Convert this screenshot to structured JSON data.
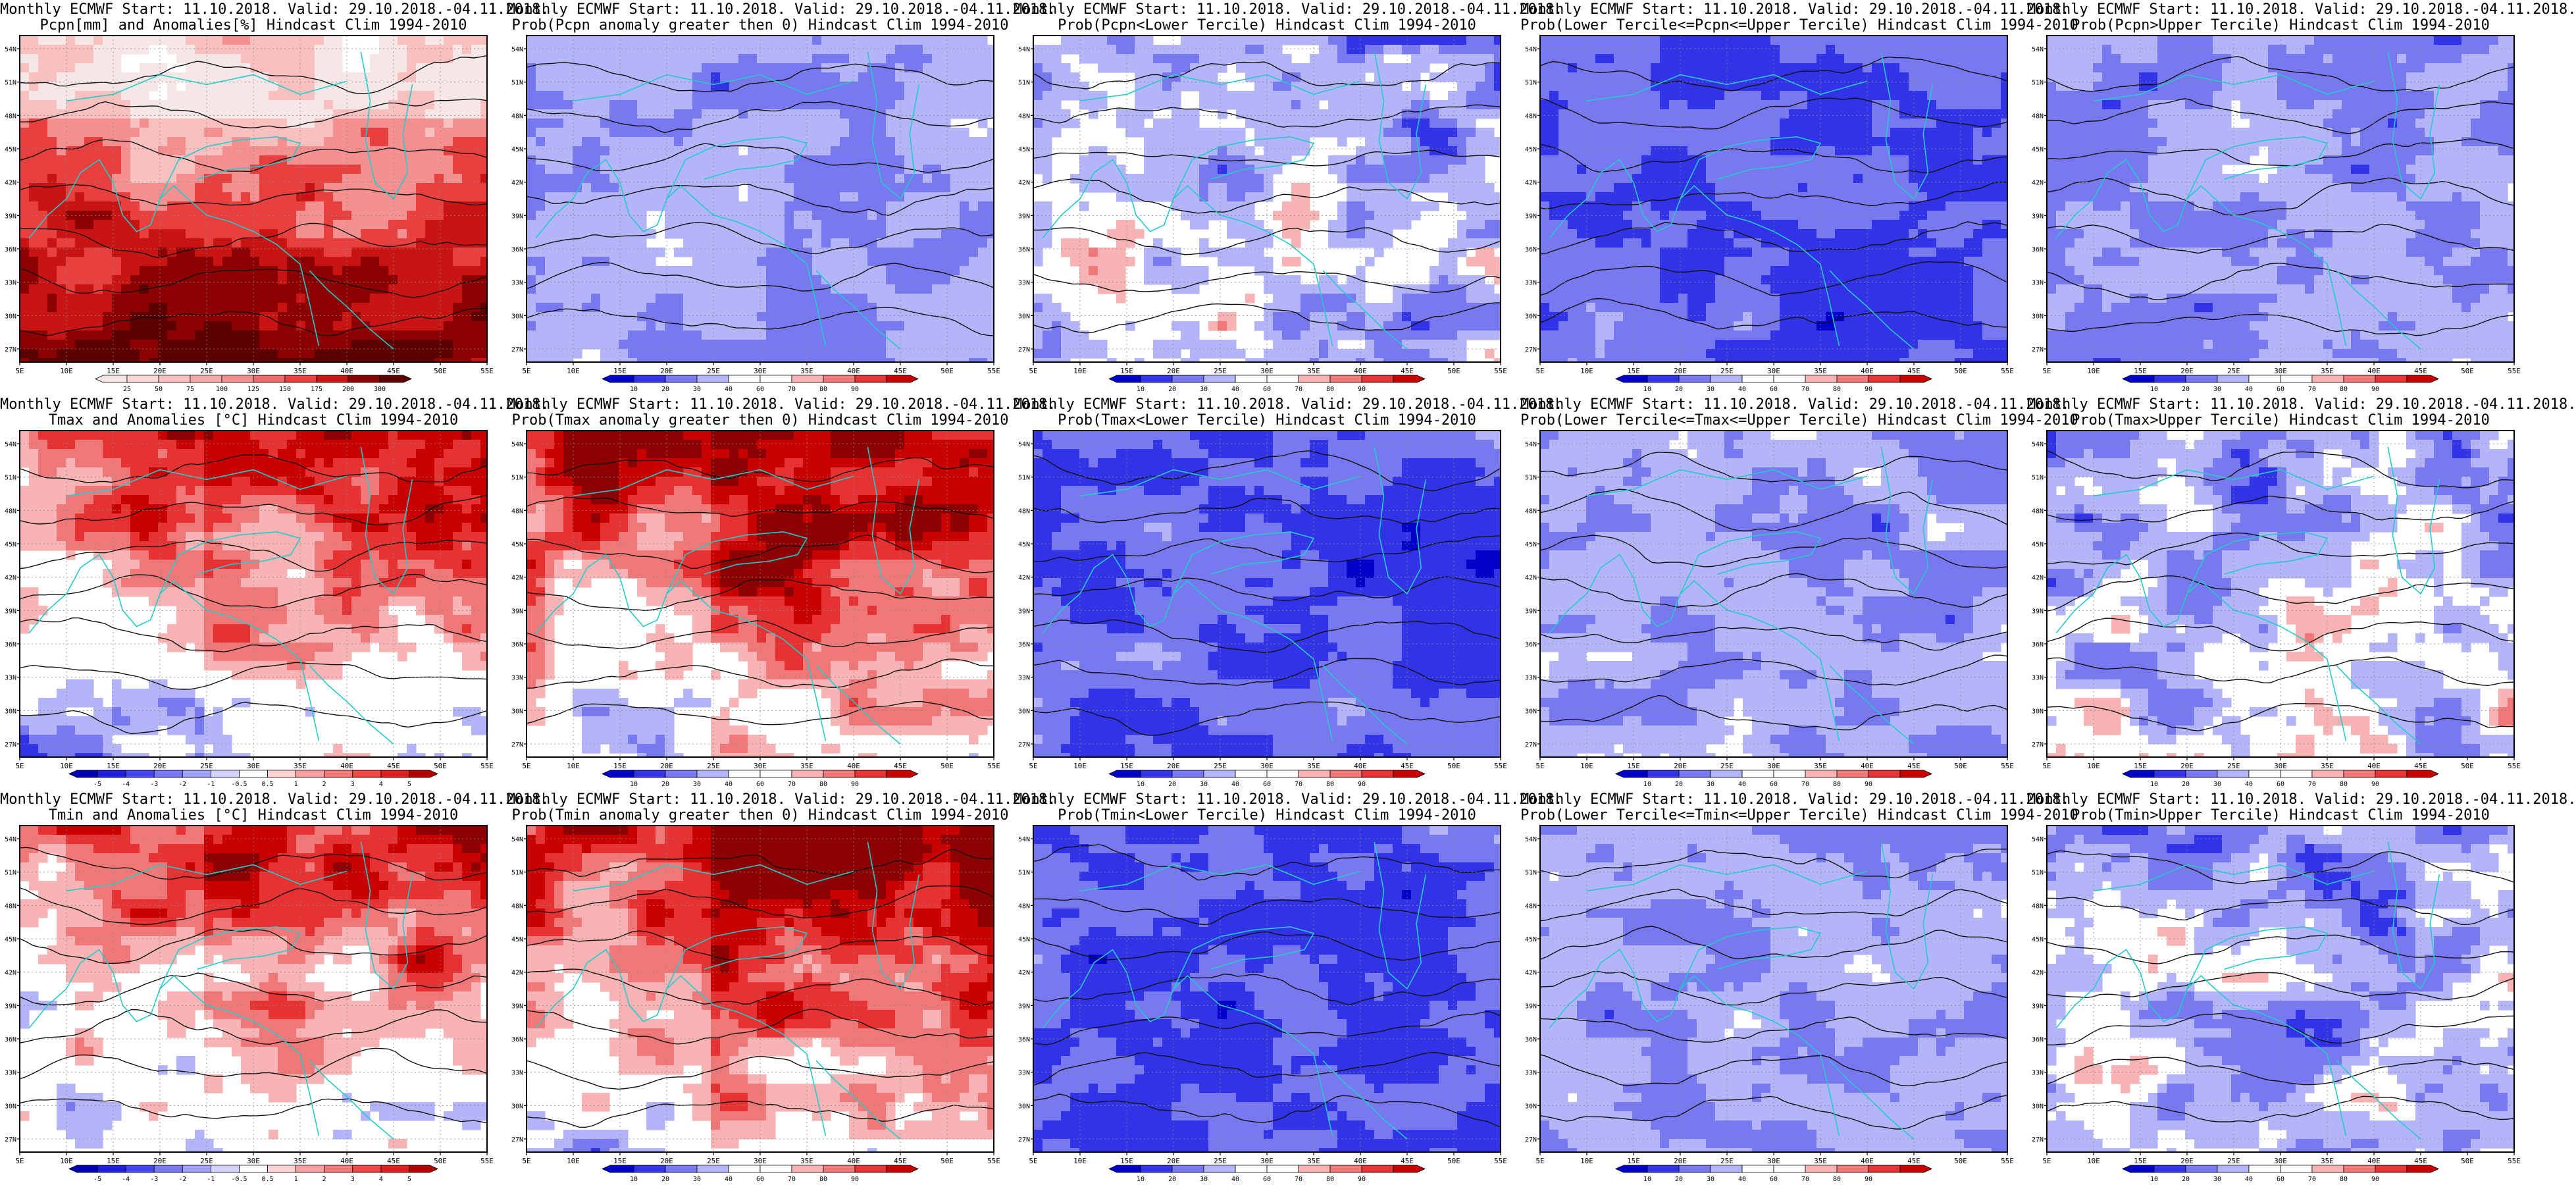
{
  "figure": {
    "title_line1": "Monthly ECMWF Start: 11.10.2018. Valid: 29.10.2018.-04.11.2018.",
    "lon_labels": [
      "5E",
      "10E",
      "15E",
      "20E",
      "25E",
      "30E",
      "35E",
      "40E",
      "45E",
      "50E",
      "55E"
    ],
    "lat_labels": [
      "54N",
      "51N",
      "48N",
      "45N",
      "42N",
      "39N",
      "36N",
      "33N",
      "30N",
      "27N"
    ],
    "colors": {
      "coast": "#22cccc",
      "contour": "#111111",
      "frame": "#000000"
    }
  },
  "rows": [
    {
      "variable": "pcpn",
      "panels": [
        {
          "title2": "Pcpn[mm] and Anomalies[%] Hindcast Clim 1994-2010",
          "scheme": "anom_pcpn",
          "cbar": {
            "labels": [
              "25",
              "50",
              "75",
              "100",
              "125",
              "150",
              "175",
              "200",
              "300"
            ],
            "colors": [
              "#f6e7e7",
              "#fbd7d7",
              "#f9c0c0",
              "#f6a8a8",
              "#f49090",
              "#ef6a6a",
              "#e83f3f",
              "#c91414",
              "#8b0000",
              "#5c0000"
            ]
          }
        },
        {
          "title2": "Prob(Pcpn anomaly greater then 0) Hindcast Clim 1994-2010",
          "scheme": "prob_blue",
          "cbar": {
            "labels": [
              "10",
              "20",
              "30",
              "40",
              "60",
              "70",
              "80",
              "90"
            ],
            "colors": [
              "#0000c8",
              "#3232e6",
              "#7878f0",
              "#b4b4f8",
              "#ffffff",
              "#ffffff",
              "#f8b4b4",
              "#f07878",
              "#e63232",
              "#c80000"
            ]
          }
        },
        {
          "title2": "Prob(Pcpn<Lower Tercile) Hindcast Clim 1994-2010",
          "scheme": "prob_mixed",
          "cbar": {
            "labels": [
              "10",
              "20",
              "30",
              "40",
              "60",
              "70",
              "80",
              "90"
            ],
            "colors": [
              "#0000c8",
              "#3232e6",
              "#7878f0",
              "#b4b4f8",
              "#ffffff",
              "#ffffff",
              "#f8b4b4",
              "#f07878",
              "#e63232",
              "#c80000"
            ]
          }
        },
        {
          "title2": "Prob(Lower Tercile<=Pcpn<=Upper Tercile) Hindcast Clim 1994-2010",
          "scheme": "prob_deepblue",
          "cbar": {
            "labels": [
              "10",
              "20",
              "30",
              "40",
              "60",
              "70",
              "80",
              "90"
            ],
            "colors": [
              "#0000c8",
              "#3232e6",
              "#7878f0",
              "#b4b4f8",
              "#ffffff",
              "#ffffff",
              "#f8b4b4",
              "#f07878",
              "#e63232",
              "#c80000"
            ]
          }
        },
        {
          "title2": "Prob(Pcpn>Upper Tercile) Hindcast Clim 1994-2010",
          "scheme": "prob_blue",
          "cbar": {
            "labels": [
              "10",
              "20",
              "30",
              "40",
              "60",
              "70",
              "80",
              "90"
            ],
            "colors": [
              "#0000c8",
              "#3232e6",
              "#7878f0",
              "#b4b4f8",
              "#ffffff",
              "#ffffff",
              "#f8b4b4",
              "#f07878",
              "#e63232",
              "#c80000"
            ]
          }
        }
      ]
    },
    {
      "variable": "tmax",
      "panels": [
        {
          "title2": "Tmax and Anomalies [°C] Hindcast Clim 1994-2010",
          "scheme": "anom_temp",
          "cbar": {
            "labels": [
              "-5",
              "-4",
              "-3",
              "-2",
              "-1",
              "-0.5",
              "0.5",
              "1",
              "2",
              "3",
              "4",
              "5"
            ],
            "colors": [
              "#0000b4",
              "#1e1edc",
              "#4646f0",
              "#7878f5",
              "#a0a0fa",
              "#d2d2fc",
              "#ffffff",
              "#fcd2d2",
              "#faa0a0",
              "#f57878",
              "#f04646",
              "#dc1e1e",
              "#b40000"
            ]
          }
        },
        {
          "title2": "Prob(Tmax anomaly greater then 0) Hindcast Clim 1994-2010",
          "scheme": "prob_red",
          "cbar": {
            "labels": [
              "10",
              "20",
              "30",
              "40",
              "60",
              "70",
              "80",
              "90"
            ],
            "colors": [
              "#0000c8",
              "#3232e6",
              "#7878f0",
              "#b4b4f8",
              "#ffffff",
              "#ffffff",
              "#f8b4b4",
              "#f07878",
              "#e63232",
              "#c80000"
            ]
          }
        },
        {
          "title2": "Prob(Tmax<Lower Tercile) Hindcast Clim 1994-2010",
          "scheme": "prob_deepblue",
          "cbar": {
            "labels": [
              "10",
              "20",
              "30",
              "40",
              "60",
              "70",
              "80",
              "90"
            ],
            "colors": [
              "#0000c8",
              "#3232e6",
              "#7878f0",
              "#b4b4f8",
              "#ffffff",
              "#ffffff",
              "#f8b4b4",
              "#f07878",
              "#e63232",
              "#c80000"
            ]
          }
        },
        {
          "title2": "Prob(Lower Tercile<=Tmax<=Upper Tercile) Hindcast Clim 1994-2010",
          "scheme": "prob_blue",
          "cbar": {
            "labels": [
              "10",
              "20",
              "30",
              "40",
              "60",
              "70",
              "80",
              "90"
            ],
            "colors": [
              "#0000c8",
              "#3232e6",
              "#7878f0",
              "#b4b4f8",
              "#ffffff",
              "#ffffff",
              "#f8b4b4",
              "#f07878",
              "#e63232",
              "#c80000"
            ]
          }
        },
        {
          "title2": "Prob(Tmax>Upper Tercile) Hindcast Clim 1994-2010",
          "scheme": "prob_mixed",
          "cbar": {
            "labels": [
              "10",
              "20",
              "30",
              "40",
              "60",
              "70",
              "80",
              "90"
            ],
            "colors": [
              "#0000c8",
              "#3232e6",
              "#7878f0",
              "#b4b4f8",
              "#ffffff",
              "#ffffff",
              "#f8b4b4",
              "#f07878",
              "#e63232",
              "#c80000"
            ]
          }
        }
      ]
    },
    {
      "variable": "tmin",
      "panels": [
        {
          "title2": "Tmin and Anomalies [°C] Hindcast Clim 1994-2010",
          "scheme": "anom_temp",
          "cbar": {
            "labels": [
              "-5",
              "-4",
              "-3",
              "-2",
              "-1",
              "-0.5",
              "0.5",
              "1",
              "2",
              "3",
              "4",
              "5"
            ],
            "colors": [
              "#0000b4",
              "#1e1edc",
              "#4646f0",
              "#7878f5",
              "#a0a0fa",
              "#d2d2fc",
              "#ffffff",
              "#fcd2d2",
              "#faa0a0",
              "#f57878",
              "#f04646",
              "#dc1e1e",
              "#b40000"
            ]
          }
        },
        {
          "title2": "Prob(Tmin anomaly greater then 0) Hindcast Clim 1994-2010",
          "scheme": "prob_red",
          "cbar": {
            "labels": [
              "10",
              "20",
              "30",
              "40",
              "60",
              "70",
              "80",
              "90"
            ],
            "colors": [
              "#0000c8",
              "#3232e6",
              "#7878f0",
              "#b4b4f8",
              "#ffffff",
              "#ffffff",
              "#f8b4b4",
              "#f07878",
              "#e63232",
              "#c80000"
            ]
          }
        },
        {
          "title2": "Prob(Tmin<Lower Tercile) Hindcast Clim 1994-2010",
          "scheme": "prob_deepblue",
          "cbar": {
            "labels": [
              "10",
              "20",
              "30",
              "40",
              "60",
              "70",
              "80",
              "90"
            ],
            "colors": [
              "#0000c8",
              "#3232e6",
              "#7878f0",
              "#b4b4f8",
              "#ffffff",
              "#ffffff",
              "#f8b4b4",
              "#f07878",
              "#e63232",
              "#c80000"
            ]
          }
        },
        {
          "title2": "Prob(Lower Tercile<=Tmin<=Upper Tercile) Hindcast Clim 1994-2010",
          "scheme": "prob_blue",
          "cbar": {
            "labels": [
              "10",
              "20",
              "30",
              "40",
              "60",
              "70",
              "80",
              "90"
            ],
            "colors": [
              "#0000c8",
              "#3232e6",
              "#7878f0",
              "#b4b4f8",
              "#ffffff",
              "#ffffff",
              "#f8b4b4",
              "#f07878",
              "#e63232",
              "#c80000"
            ]
          }
        },
        {
          "title2": "Prob(Tmin>Upper Tercile) Hindcast Clim 1994-2010",
          "scheme": "prob_mixed",
          "cbar": {
            "labels": [
              "10",
              "20",
              "30",
              "40",
              "60",
              "70",
              "80",
              "90"
            ],
            "colors": [
              "#0000c8",
              "#3232e6",
              "#7878f0",
              "#b4b4f8",
              "#ffffff",
              "#ffffff",
              "#f8b4b4",
              "#f07878",
              "#e63232",
              "#c80000"
            ]
          }
        }
      ]
    }
  ]
}
